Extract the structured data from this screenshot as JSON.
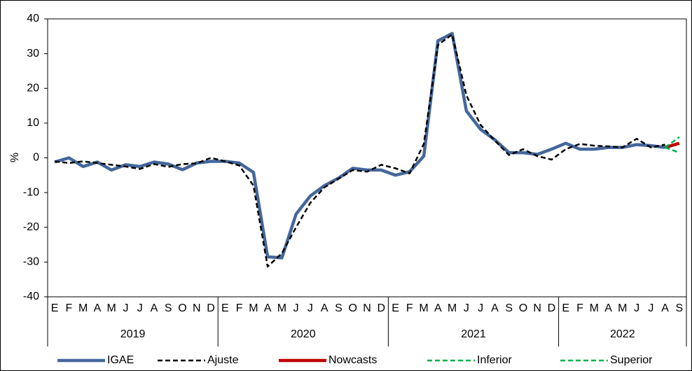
{
  "chart_data": {
    "type": "line",
    "y_label": "%",
    "groups": [
      {
        "label": "2019",
        "categories": [
          "E",
          "F",
          "M",
          "A",
          "M",
          "J",
          "J",
          "A",
          "S",
          "O",
          "N",
          "D"
        ]
      },
      {
        "label": "2020",
        "categories": [
          "E",
          "F",
          "M",
          "A",
          "M",
          "J",
          "J",
          "A",
          "S",
          "O",
          "N",
          "D"
        ]
      },
      {
        "label": "2021",
        "categories": [
          "E",
          "F",
          "M",
          "A",
          "M",
          "J",
          "J",
          "A",
          "S",
          "O",
          "N",
          "D"
        ]
      },
      {
        "label": "2022",
        "categories": [
          "E",
          "F",
          "M",
          "A",
          "M",
          "J",
          "J",
          "A",
          "S"
        ]
      }
    ],
    "ylim": [
      -40,
      40
    ],
    "yticks": [
      -40,
      -30,
      -20,
      -10,
      0,
      10,
      20,
      30,
      40
    ],
    "grid": false,
    "legend": "bottom",
    "series": [
      {
        "name": "IGAE",
        "color": "#44679b",
        "style": "solid",
        "values": [
          -1.2,
          0,
          -2.5,
          -1.2,
          -3.5,
          -2,
          -2.5,
          -1.2,
          -1.8,
          -3.4,
          -1.5,
          -1,
          -1,
          -1.5,
          -4.2,
          -28.5,
          -28.8,
          -16.2,
          -11,
          -8,
          -5.8,
          -3,
          -3.5,
          -3.5,
          -5,
          -4,
          0.5,
          33.7,
          35.8,
          13.5,
          8.2,
          5.2,
          1.5,
          1.5,
          1,
          2.5,
          4.2,
          2.5,
          2.5,
          3,
          3,
          3.8,
          3.5,
          3,
          null
        ]
      },
      {
        "name": "Ajuste",
        "color": "#000000",
        "style": "dashed",
        "values": [
          -1,
          -1.5,
          -1,
          -1.5,
          -2,
          -2.5,
          -3.2,
          -1.8,
          -2.6,
          -1.8,
          -1.6,
          0,
          -1,
          -2.2,
          -8,
          -31.3,
          -27.5,
          -20,
          -13,
          -8.5,
          -6,
          -3.5,
          -4,
          -2,
          -3,
          -4.5,
          4,
          32.5,
          35.5,
          18,
          9.5,
          5,
          0.8,
          2.5,
          0.5,
          -0.5,
          2.5,
          4,
          3.5,
          3.3,
          3,
          5.5,
          3,
          3.8,
          null
        ]
      },
      {
        "name": "Nowcasts",
        "color": "#c00000",
        "style": "solid",
        "values": [
          null,
          null,
          null,
          null,
          null,
          null,
          null,
          null,
          null,
          null,
          null,
          null,
          null,
          null,
          null,
          null,
          null,
          null,
          null,
          null,
          null,
          null,
          null,
          null,
          null,
          null,
          null,
          null,
          null,
          null,
          null,
          null,
          null,
          null,
          null,
          null,
          null,
          null,
          null,
          null,
          null,
          null,
          null,
          3,
          4.2
        ]
      },
      {
        "name": "Inferior",
        "color": "#00b050",
        "style": "dashed",
        "values": [
          null,
          null,
          null,
          null,
          null,
          null,
          null,
          null,
          null,
          null,
          null,
          null,
          null,
          null,
          null,
          null,
          null,
          null,
          null,
          null,
          null,
          null,
          null,
          null,
          null,
          null,
          null,
          null,
          null,
          null,
          null,
          null,
          null,
          null,
          null,
          null,
          null,
          null,
          null,
          null,
          null,
          null,
          null,
          3,
          1.5
        ]
      },
      {
        "name": "Superior",
        "color": "#00b050",
        "style": "dashed",
        "values": [
          null,
          null,
          null,
          null,
          null,
          null,
          null,
          null,
          null,
          null,
          null,
          null,
          null,
          null,
          null,
          null,
          null,
          null,
          null,
          null,
          null,
          null,
          null,
          null,
          null,
          null,
          null,
          null,
          null,
          null,
          null,
          null,
          null,
          null,
          null,
          null,
          null,
          null,
          null,
          null,
          null,
          null,
          null,
          3,
          6
        ]
      }
    ]
  }
}
